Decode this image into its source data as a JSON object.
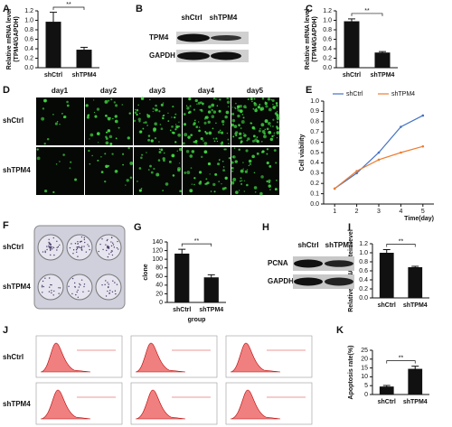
{
  "chart_data": [
    {
      "type": "bar",
      "panel": "A",
      "ylabel": [
        "Relative mRNA level",
        "(TPM4/GAPDH)"
      ],
      "categories": [
        "shCtrl",
        "shTPM4"
      ],
      "values": [
        0.97,
        0.38
      ],
      "errors": [
        0.2,
        0.05
      ],
      "color": "#111111",
      "ylim": [
        0,
        1.2
      ],
      "yticks": [
        {
          "value": 0,
          "label": "0.0"
        },
        0.2,
        0.4,
        0.6,
        0.8,
        {
          "value": 1,
          "label": "1.0"
        },
        1.2
      ],
      "annotation": "**"
    },
    {
      "type": "bar",
      "panel": "C",
      "ylabel": [
        "Relative mRNA level",
        "(TPM4/GAPDH)"
      ],
      "categories": [
        "shCtrl",
        "shTPM4"
      ],
      "values": [
        0.98,
        0.32
      ],
      "errors": [
        0.05,
        0.02
      ],
      "color": "#111111",
      "ylim": [
        0,
        1.2
      ],
      "yticks": [
        {
          "value": 0,
          "label": "0.0"
        },
        0.2,
        0.4,
        0.6,
        0.8,
        {
          "value": 1,
          "label": "1.0"
        },
        1.2
      ],
      "annotation": "**"
    },
    {
      "type": "line",
      "panel": "E",
      "ylabel": "Cell viability",
      "xlabel": "Time(day)",
      "x": [
        1,
        2,
        3,
        4,
        5
      ],
      "series": [
        {
          "name": "shCtrl",
          "color": "#4472c4",
          "values": [
            0.15,
            0.3,
            0.5,
            0.75,
            0.86
          ]
        },
        {
          "name": "shTPM4",
          "color": "#ed7d31",
          "values": [
            0.15,
            0.32,
            0.43,
            0.5,
            0.56
          ]
        }
      ],
      "xlim": [
        0.5,
        5.5
      ],
      "xticks": [
        1,
        2,
        3,
        4,
        5
      ],
      "ylim": [
        0,
        1
      ],
      "yticks": [
        {
          "value": 0,
          "label": "0.0"
        },
        0.1,
        0.2,
        0.3,
        0.4,
        0.5,
        0.6,
        0.7,
        0.8,
        0.9,
        {
          "value": 1,
          "label": "1.0"
        }
      ],
      "legend": "top"
    },
    {
      "type": "bar",
      "panel": "G",
      "ylabel": "clone",
      "xlabel": "group",
      "categories": [
        "shCtrl",
        "shTPM4"
      ],
      "values": [
        113,
        58
      ],
      "errors": [
        10,
        6
      ],
      "color": "#111111",
      "ylim": [
        0,
        140
      ],
      "yticks": [
        0,
        20,
        40,
        60,
        80,
        100,
        120,
        140
      ],
      "annotation": "**"
    },
    {
      "type": "bar",
      "panel": "I",
      "ylabel": "Relative PCNA protein level",
      "categories": [
        "shCtrl",
        "shTPM4"
      ],
      "values": [
        1.0,
        0.68
      ],
      "errors": [
        0.07,
        0.02
      ],
      "color": "#111111",
      "ylim": [
        0,
        1.2
      ],
      "yticks": [
        {
          "value": 0,
          "label": "0.0"
        },
        0.2,
        0.4,
        0.6,
        0.8,
        {
          "value": 1,
          "label": "1.0"
        },
        1.2
      ],
      "annotation": "**"
    },
    {
      "type": "bar",
      "panel": "K",
      "ylabel": "Apoptosis rate(%)",
      "categories": [
        "shCtrl",
        "shTPM4"
      ],
      "values": [
        4.5,
        14.5
      ],
      "errors": [
        0.6,
        1.5
      ],
      "color": "#111111",
      "ylim": [
        0,
        25
      ],
      "yticks": [
        0,
        5,
        10,
        15,
        20,
        25
      ],
      "annotation": "**"
    }
  ],
  "blot_b": {
    "panel": "B",
    "columns": [
      "shCtrl",
      "shTPM4"
    ],
    "rows": [
      "TPM4",
      "GAPDH"
    ]
  },
  "images_d": {
    "panel": "D",
    "columns": [
      "day1",
      "day2",
      "day3",
      "day4",
      "day5"
    ],
    "rows": [
      "shCtrl",
      "shTPM4"
    ]
  },
  "plate_f": {
    "panel": "F",
    "rows": [
      "shCtrl",
      "shTPM4"
    ]
  },
  "blot_h": {
    "panel": "H",
    "columns": [
      "shCtrl",
      "shTPM4"
    ],
    "rows": [
      "PCNA",
      "GAPDH"
    ]
  },
  "flow_j": {
    "panel": "J",
    "rows": [
      "shCtrl",
      "shTPM4"
    ]
  }
}
